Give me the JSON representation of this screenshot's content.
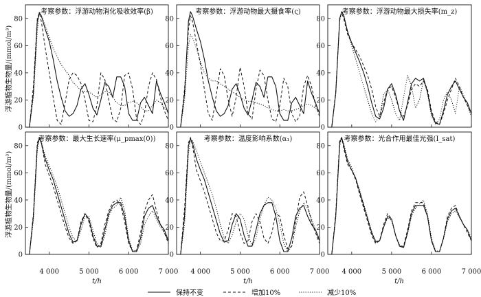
{
  "figure": {
    "ylabel": "浮游植物生物量/(mmol/m³)",
    "xlabel": "t/h",
    "legend": {
      "items": [
        {
          "label": "保持不变",
          "style": "solid"
        },
        {
          "label": "增加10%",
          "style": "dashed"
        },
        {
          "label": "减少10%",
          "style": "dotted"
        }
      ]
    }
  },
  "chart_data": [
    {
      "type": "line",
      "title": "考察参数：浮游动物消化吸收效率(β)",
      "xlim": [
        3400,
        7000
      ],
      "ylim": [
        0,
        90
      ],
      "xticks": [
        4000,
        5000,
        6000,
        7000
      ],
      "xtick_labels": [
        "4 000",
        "5 000",
        "6 000",
        "7 000"
      ],
      "yticks": [
        0,
        20,
        40,
        60,
        80
      ],
      "ytick_labels": [
        "0",
        "20",
        "40",
        "60",
        "80"
      ],
      "x": [
        3400,
        3500,
        3600,
        3700,
        3750,
        3800,
        3900,
        4000,
        4100,
        4200,
        4300,
        4400,
        4500,
        4600,
        4700,
        4800,
        4900,
        5000,
        5100,
        5200,
        5300,
        5400,
        5500,
        5600,
        5700,
        5800,
        5900,
        6000,
        6100,
        6200,
        6300,
        6400,
        6500,
        6600,
        6700,
        6800,
        6900,
        7000
      ],
      "series": [
        {
          "name": "保持不变",
          "style": "solid",
          "values": [
            0,
            0,
            25,
            78,
            84,
            82,
            72,
            63,
            50,
            34,
            22,
            12,
            8,
            10,
            16,
            28,
            32,
            24,
            14,
            9,
            20,
            33,
            30,
            22,
            37,
            37,
            30,
            10,
            5,
            5,
            18,
            22,
            16,
            10,
            34,
            25,
            18,
            10
          ]
        },
        {
          "name": "增加10%",
          "style": "dashed",
          "values": [
            0,
            0,
            30,
            80,
            84,
            78,
            58,
            40,
            22,
            5,
            2,
            18,
            35,
            40,
            38,
            32,
            20,
            5,
            4,
            16,
            40,
            35,
            20,
            6,
            4,
            14,
            38,
            40,
            28,
            6,
            2,
            10,
            30,
            40,
            35,
            22,
            12,
            5
          ]
        },
        {
          "name": "减少10%",
          "style": "dotted",
          "values": [
            0,
            0,
            22,
            70,
            85,
            82,
            75,
            66,
            58,
            52,
            46,
            42,
            38,
            33,
            30,
            27,
            26,
            26,
            24,
            22,
            24,
            26,
            26,
            22,
            18,
            16,
            16,
            18,
            19,
            18,
            15,
            12,
            12,
            16,
            20,
            18,
            14,
            11
          ]
        }
      ]
    },
    {
      "type": "line",
      "title": "考察参数：浮游动物最大摄食率(ς)",
      "xlim": [
        3400,
        7000
      ],
      "ylim": [
        0,
        90
      ],
      "xticks": [
        4000,
        5000,
        6000,
        7000
      ],
      "xtick_labels": [
        "4 000",
        "5 000",
        "6 000",
        "7 000"
      ],
      "yticks": [
        0,
        20,
        40,
        60,
        80
      ],
      "ytick_labels": [
        "0",
        "20",
        "40",
        "60",
        "80"
      ],
      "x": [
        3400,
        3500,
        3600,
        3700,
        3750,
        3800,
        3900,
        4000,
        4100,
        4200,
        4300,
        4400,
        4500,
        4600,
        4700,
        4800,
        4900,
        5000,
        5100,
        5200,
        5300,
        5400,
        5500,
        5600,
        5700,
        5800,
        5900,
        6000,
        6100,
        6200,
        6300,
        6400,
        6500,
        6600,
        6700,
        6800,
        6900,
        7000
      ],
      "series": [
        {
          "name": "保持不变",
          "style": "solid",
          "values": [
            0,
            0,
            25,
            78,
            85,
            82,
            72,
            63,
            50,
            34,
            22,
            12,
            8,
            10,
            16,
            28,
            32,
            24,
            14,
            9,
            20,
            33,
            30,
            22,
            37,
            37,
            30,
            10,
            5,
            5,
            18,
            22,
            16,
            10,
            34,
            25,
            18,
            10
          ]
        },
        {
          "name": "增加10%",
          "style": "dashed",
          "values": [
            0,
            0,
            28,
            72,
            82,
            78,
            62,
            46,
            28,
            10,
            5,
            24,
            43,
            38,
            20,
            8,
            22,
            44,
            30,
            10,
            6,
            28,
            42,
            38,
            20,
            6,
            4,
            16,
            36,
            30,
            10,
            4,
            8,
            30,
            38,
            30,
            16,
            8
          ]
        },
        {
          "name": "减少10%",
          "style": "dotted",
          "values": [
            0,
            0,
            20,
            60,
            68,
            66,
            58,
            48,
            40,
            36,
            34,
            34,
            32,
            30,
            28,
            26,
            24,
            22,
            20,
            19,
            19,
            18,
            17,
            16,
            14,
            13,
            12,
            12,
            13,
            12,
            12,
            13,
            14,
            16,
            17,
            16,
            14,
            12
          ]
        }
      ]
    },
    {
      "type": "line",
      "title": "考察参数：浮游动物最大损失率(m_z)",
      "xlim": [
        3400,
        7000
      ],
      "ylim": [
        0,
        90
      ],
      "xticks": [
        4000,
        5000,
        6000,
        7000
      ],
      "xtick_labels": [
        "4 000",
        "5 000",
        "6 000",
        "7 000"
      ],
      "yticks": [
        0,
        20,
        40,
        60,
        80
      ],
      "ytick_labels": [
        "0",
        "20",
        "40",
        "60",
        "80"
      ],
      "x": [
        3400,
        3500,
        3600,
        3700,
        3750,
        3800,
        3900,
        4000,
        4100,
        4200,
        4300,
        4400,
        4500,
        4600,
        4700,
        4800,
        4900,
        5000,
        5100,
        5200,
        5300,
        5400,
        5500,
        5600,
        5700,
        5800,
        5900,
        6000,
        6100,
        6200,
        6300,
        6400,
        6500,
        6600,
        6700,
        6800,
        6900,
        7000
      ],
      "series": [
        {
          "name": "保持不变",
          "style": "solid",
          "values": [
            0,
            0,
            25,
            80,
            85,
            82,
            70,
            62,
            55,
            48,
            40,
            30,
            18,
            8,
            6,
            14,
            28,
            32,
            24,
            12,
            5,
            18,
            32,
            36,
            34,
            36,
            26,
            10,
            3,
            2,
            12,
            24,
            30,
            34,
            28,
            22,
            18,
            10
          ]
        },
        {
          "name": "增加10%",
          "style": "dashed",
          "values": [
            0,
            0,
            26,
            80,
            84,
            80,
            68,
            62,
            57,
            52,
            45,
            38,
            28,
            15,
            8,
            18,
            28,
            30,
            22,
            12,
            8,
            16,
            28,
            32,
            30,
            34,
            28,
            12,
            4,
            2,
            10,
            20,
            28,
            36,
            30,
            22,
            16,
            10
          ]
        },
        {
          "name": "减少10%",
          "style": "dotted",
          "values": [
            0,
            0,
            24,
            78,
            85,
            83,
            70,
            60,
            50,
            40,
            30,
            20,
            10,
            4,
            8,
            24,
            28,
            20,
            10,
            5,
            22,
            38,
            30,
            14,
            20,
            35,
            25,
            8,
            2,
            6,
            20,
            26,
            20,
            10,
            30,
            24,
            16,
            8
          ]
        }
      ]
    },
    {
      "type": "line",
      "title": "考察参数：最大生长速率(μ_pmax(0))",
      "xlim": [
        3400,
        7000
      ],
      "ylim": [
        0,
        90
      ],
      "xticks": [
        4000,
        5000,
        6000,
        7000
      ],
      "xtick_labels": [
        "4 000",
        "5 000",
        "6 000",
        "7 000"
      ],
      "yticks": [
        0,
        20,
        40,
        60,
        80
      ],
      "ytick_labels": [
        "0",
        "20",
        "40",
        "60",
        "80"
      ],
      "x": [
        3400,
        3500,
        3600,
        3700,
        3750,
        3800,
        3900,
        4000,
        4100,
        4200,
        4300,
        4400,
        4500,
        4600,
        4700,
        4800,
        4900,
        5000,
        5100,
        5200,
        5300,
        5400,
        5500,
        5600,
        5700,
        5800,
        5900,
        6000,
        6100,
        6200,
        6300,
        6400,
        6500,
        6600,
        6700,
        6800,
        6900,
        7000
      ],
      "series": [
        {
          "name": "保持不变",
          "style": "solid",
          "values": [
            0,
            0,
            28,
            80,
            85,
            82,
            70,
            62,
            55,
            45,
            35,
            25,
            15,
            9,
            10,
            22,
            30,
            26,
            14,
            6,
            6,
            18,
            30,
            36,
            38,
            38,
            28,
            10,
            2,
            2,
            12,
            28,
            34,
            36,
            28,
            22,
            18,
            10
          ]
        },
        {
          "name": "增加10%",
          "style": "dashed",
          "values": [
            0,
            0,
            30,
            82,
            86,
            82,
            66,
            58,
            50,
            40,
            30,
            20,
            12,
            8,
            10,
            24,
            30,
            24,
            12,
            5,
            8,
            22,
            32,
            38,
            40,
            36,
            24,
            8,
            2,
            3,
            16,
            32,
            40,
            44,
            32,
            22,
            16,
            8
          ]
        },
        {
          "name": "减少10%",
          "style": "dotted",
          "values": [
            0,
            0,
            25,
            76,
            85,
            83,
            72,
            65,
            58,
            50,
            40,
            30,
            20,
            12,
            10,
            18,
            28,
            28,
            18,
            8,
            5,
            14,
            28,
            34,
            36,
            42,
            32,
            12,
            3,
            2,
            8,
            22,
            28,
            32,
            26,
            20,
            16,
            10
          ]
        }
      ]
    },
    {
      "type": "line",
      "title": "考察参数：温度影响系数(α₁)",
      "xlim": [
        3400,
        7000
      ],
      "ylim": [
        0,
        90
      ],
      "xticks": [
        4000,
        5000,
        6000,
        7000
      ],
      "xtick_labels": [
        "4 000",
        "5 000",
        "6 000",
        "7 000"
      ],
      "yticks": [
        0,
        20,
        40,
        60,
        80
      ],
      "ytick_labels": [
        "0",
        "20",
        "40",
        "60",
        "80"
      ],
      "x": [
        3400,
        3500,
        3600,
        3700,
        3750,
        3800,
        3900,
        4000,
        4100,
        4200,
        4300,
        4400,
        4500,
        4600,
        4700,
        4800,
        4900,
        5000,
        5100,
        5200,
        5300,
        5400,
        5500,
        5600,
        5700,
        5800,
        5900,
        6000,
        6100,
        6200,
        6300,
        6400,
        6500,
        6600,
        6700,
        6800,
        6900,
        7000
      ],
      "series": [
        {
          "name": "保持不变",
          "style": "solid",
          "values": [
            0,
            0,
            28,
            80,
            85,
            82,
            70,
            62,
            55,
            45,
            35,
            25,
            15,
            9,
            10,
            22,
            30,
            26,
            14,
            6,
            6,
            18,
            30,
            36,
            38,
            38,
            28,
            10,
            2,
            2,
            12,
            28,
            34,
            36,
            28,
            22,
            18,
            10
          ]
        },
        {
          "name": "增加10%",
          "style": "dashed",
          "values": [
            0,
            0,
            34,
            82,
            86,
            80,
            62,
            54,
            46,
            36,
            26,
            16,
            10,
            10,
            18,
            30,
            28,
            16,
            8,
            10,
            24,
            30,
            24,
            12,
            8,
            16,
            30,
            28,
            14,
            4,
            6,
            24,
            42,
            46,
            36,
            24,
            16,
            8
          ]
        },
        {
          "name": "减少10%",
          "style": "dotted",
          "values": [
            0,
            0,
            22,
            74,
            84,
            84,
            76,
            68,
            60,
            52,
            44,
            34,
            22,
            12,
            8,
            14,
            24,
            30,
            26,
            14,
            6,
            12,
            26,
            36,
            42,
            40,
            34,
            22,
            8,
            2,
            6,
            20,
            32,
            38,
            34,
            26,
            18,
            12
          ]
        }
      ]
    },
    {
      "type": "line",
      "title": "考察参数：光合作用最佳光强(I_sat)",
      "xlim": [
        3400,
        7000
      ],
      "ylim": [
        0,
        90
      ],
      "xticks": [
        4000,
        5000,
        6000,
        7000
      ],
      "xtick_labels": [
        "4 000",
        "5 000",
        "6 000",
        "7 000"
      ],
      "yticks": [
        0,
        20,
        40,
        60,
        80
      ],
      "ytick_labels": [
        "0",
        "20",
        "40",
        "60",
        "80"
      ],
      "x": [
        3400,
        3500,
        3600,
        3700,
        3750,
        3800,
        3900,
        4000,
        4100,
        4200,
        4300,
        4400,
        4500,
        4600,
        4700,
        4800,
        4900,
        5000,
        5100,
        5200,
        5300,
        5400,
        5500,
        5600,
        5700,
        5800,
        5900,
        6000,
        6100,
        6200,
        6300,
        6400,
        6500,
        6600,
        6700,
        6800,
        6900,
        7000
      ],
      "series": [
        {
          "name": "保持不变",
          "style": "solid",
          "values": [
            0,
            0,
            28,
            82,
            86,
            80,
            68,
            62,
            56,
            46,
            36,
            26,
            16,
            9,
            10,
            20,
            28,
            26,
            14,
            6,
            5,
            16,
            30,
            36,
            36,
            36,
            28,
            10,
            2,
            2,
            12,
            26,
            32,
            34,
            28,
            22,
            18,
            10
          ]
        },
        {
          "name": "增加10%",
          "style": "dashed",
          "values": [
            0,
            0,
            30,
            84,
            86,
            78,
            66,
            62,
            55,
            44,
            34,
            24,
            14,
            8,
            10,
            22,
            30,
            26,
            14,
            6,
            6,
            18,
            32,
            38,
            38,
            38,
            28,
            10,
            2,
            2,
            12,
            28,
            34,
            36,
            28,
            22,
            16,
            10
          ]
        },
        {
          "name": "减少10%",
          "style": "dotted",
          "values": [
            0,
            0,
            26,
            80,
            85,
            82,
            70,
            64,
            56,
            47,
            37,
            27,
            17,
            10,
            10,
            20,
            27,
            25,
            14,
            7,
            5,
            15,
            28,
            34,
            37,
            40,
            30,
            12,
            3,
            2,
            11,
            24,
            30,
            32,
            27,
            22,
            18,
            12
          ]
        }
      ]
    }
  ]
}
